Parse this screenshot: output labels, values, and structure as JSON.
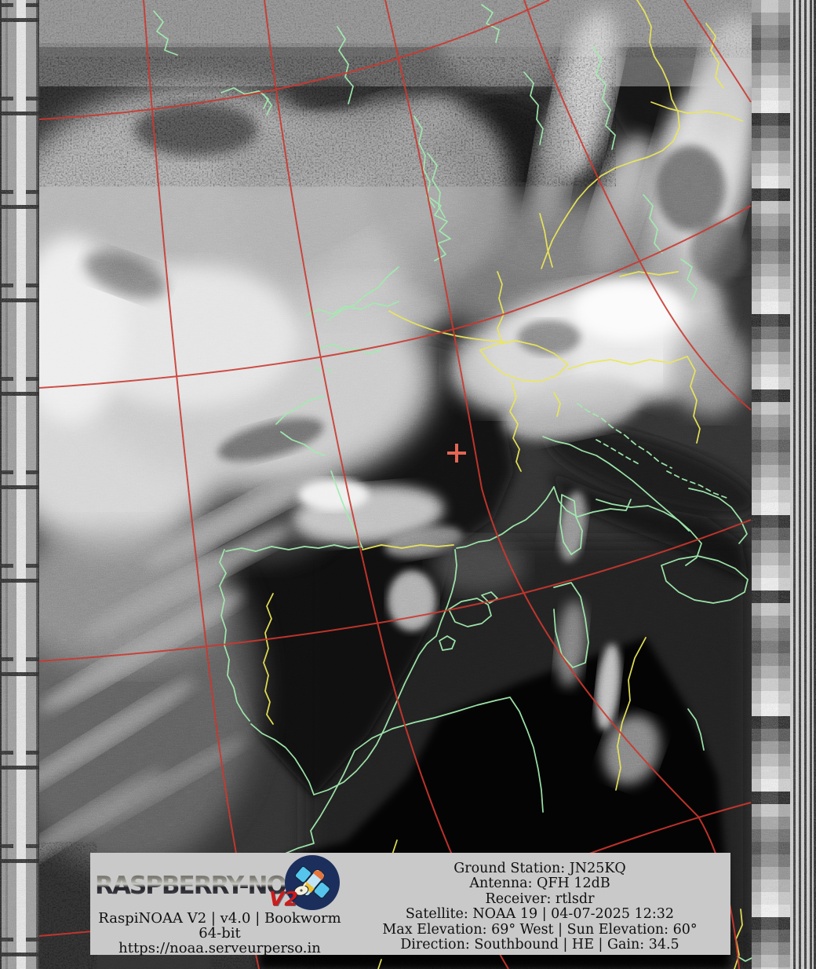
{
  "logo": {
    "brand": "RASPBERRY-NOAA",
    "version": "V2",
    "icon": "satellite-icon"
  },
  "station_info": {
    "line1": "RaspiNOAA V2 | v4.0 | Bookworm 64-bit",
    "line2": "https://noaa.serveurperso.in",
    "ground_station": "Ground Station: JN25KQ",
    "antenna": "Antenna: QFH 12dB",
    "receiver": "Receiver: rtlsdr",
    "satellite": "Satellite: NOAA 19 | 04-07-2025 12:32",
    "elevation": "Max Elevation: 69° West | Sun Elevation: 60°",
    "direction": "Direction: Southbound | HE | Gain: 34.5"
  },
  "overlay_colors": {
    "coastline": "#93e9a2",
    "country_border": "#e9e44c",
    "graticule": "#c23028",
    "station_marker": "#e05848",
    "info_bar_bg": "#c9c9c9",
    "v2_red": "#d01a1a",
    "icon_circle": "#1c2f5c",
    "icon_satellite": "#55c5ee"
  }
}
